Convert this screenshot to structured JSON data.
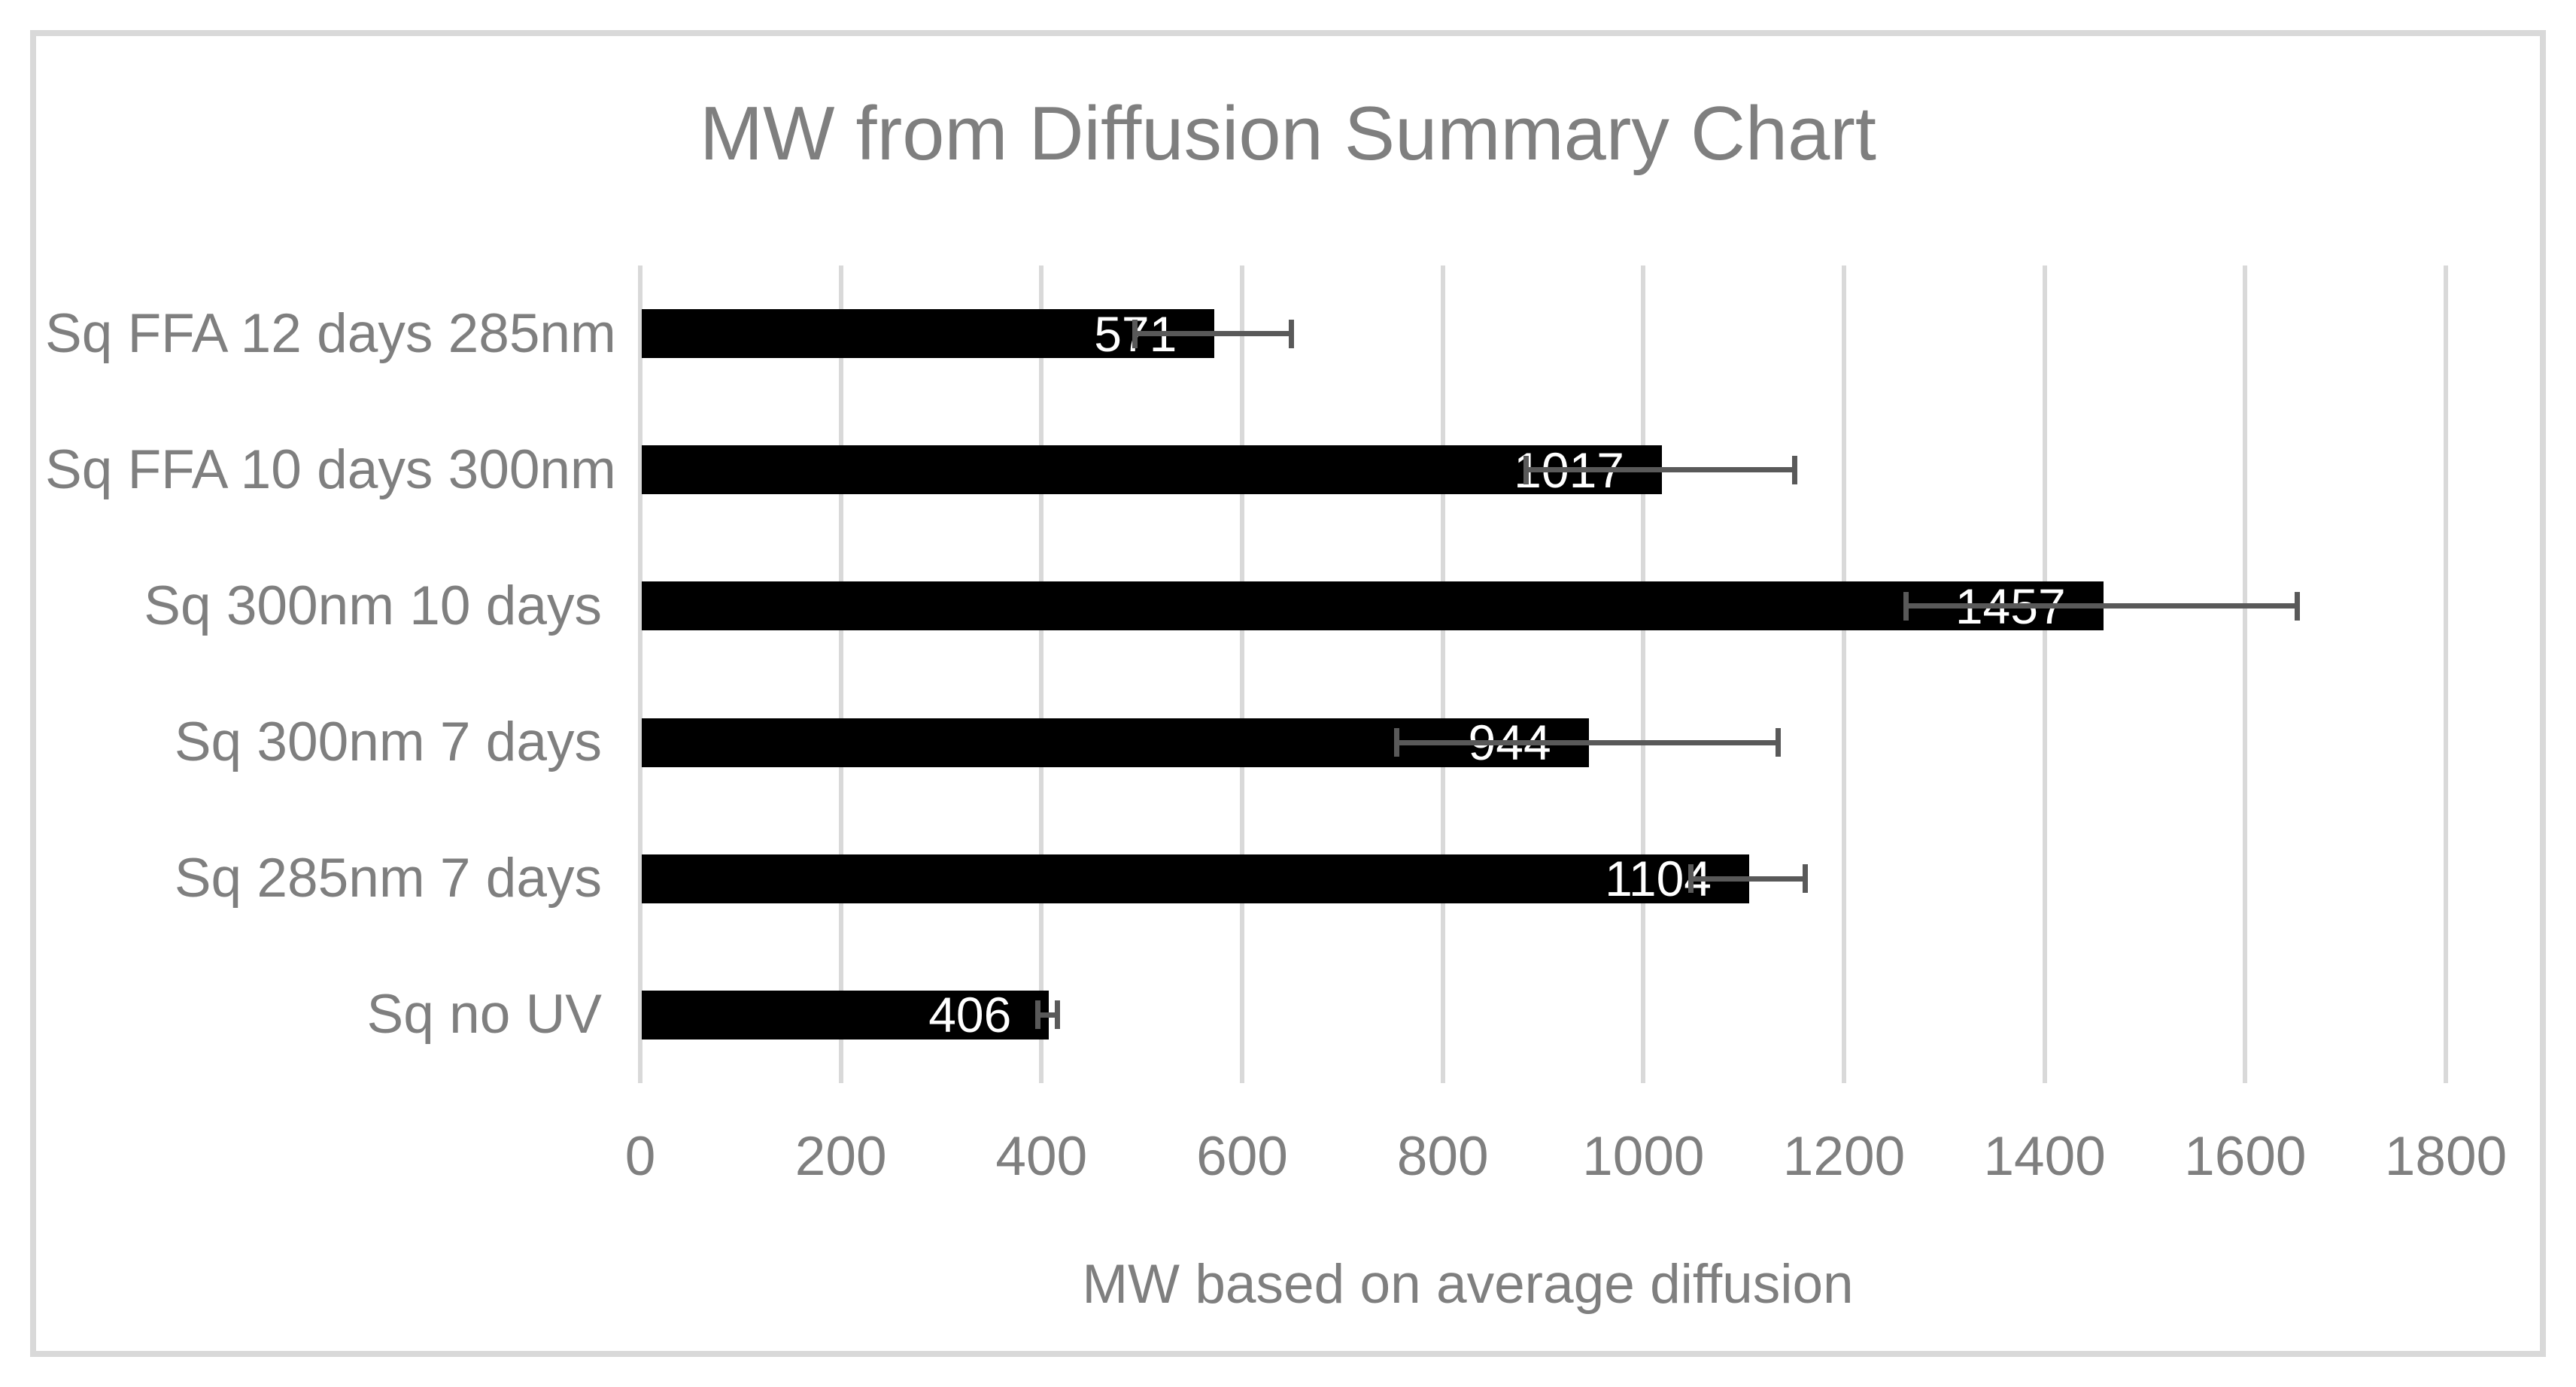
{
  "title": "MW from Diffusion Summary Chart",
  "chart_data": {
    "type": "bar",
    "orientation": "horizontal",
    "title": "MW from Diffusion Summary Chart",
    "xlabel": "MW based on average diffusion",
    "categories": [
      "Sq FFA 12 days 285nm",
      "Sq FFA 10 days 300nm",
      "Sq 300nm 10 days",
      "Sq 300nm 7 days",
      "Sq 285nm 7 days",
      "Sq no UV"
    ],
    "values": [
      571,
      1017,
      1457,
      944,
      1104,
      406
    ],
    "value_labels": [
      "571",
      "1017",
      "1457",
      "944",
      "1104",
      "406"
    ],
    "errors_plus_minus": [
      78,
      134,
      195,
      190,
      57,
      10
    ],
    "xlim": [
      0,
      1800
    ],
    "xticks": [
      0,
      200,
      400,
      600,
      800,
      1000,
      1200,
      1400,
      1600,
      1800
    ],
    "grid": "vertical-only",
    "legend": "none",
    "colors": {
      "bar": "#000000",
      "error_bar": "#595959",
      "value_label": "#ffffff",
      "axis_text": "#7f7f7f",
      "title_text": "#7f7f7f",
      "gridline": "#d9d9d9",
      "frame_border": "#d9d9d9",
      "background": "#ffffff"
    }
  }
}
